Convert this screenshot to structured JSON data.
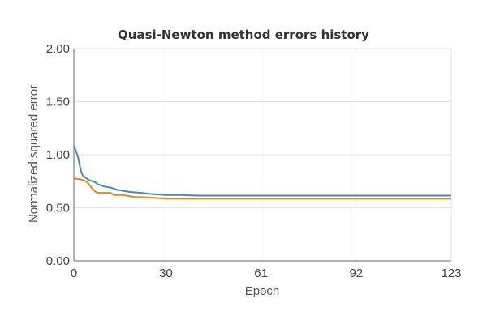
{
  "chart_data": {
    "type": "line",
    "title": "Quasi-Newton method errors history",
    "xlabel": "Epoch",
    "ylabel": "Normalized squared error",
    "xlim": [
      0,
      123
    ],
    "ylim": [
      0,
      2
    ],
    "x_ticks": [
      "0",
      "30",
      "61",
      "92",
      "123"
    ],
    "x_tick_values": [
      0,
      30,
      61,
      92,
      123
    ],
    "y_ticks": [
      "0.00",
      "0.50",
      "1.00",
      "1.50",
      "2.00"
    ],
    "y_tick_values": [
      0,
      0.5,
      1.0,
      1.5,
      2.0
    ],
    "grid": true,
    "series": [
      {
        "color": "#3a8ec2",
        "x": [
          0,
          0.5,
          1,
          1.5,
          2,
          2.5,
          3,
          4,
          5,
          6,
          7,
          8,
          10,
          12,
          14,
          16,
          18,
          20,
          22,
          25,
          28,
          30,
          35,
          40,
          50,
          60,
          80,
          100,
          123
        ],
        "y": [
          1.08,
          1.05,
          1.01,
          0.96,
          0.89,
          0.83,
          0.8,
          0.78,
          0.76,
          0.75,
          0.74,
          0.72,
          0.7,
          0.69,
          0.67,
          0.66,
          0.65,
          0.645,
          0.64,
          0.63,
          0.625,
          0.62,
          0.62,
          0.615,
          0.615,
          0.615,
          0.615,
          0.615,
          0.615
        ]
      },
      {
        "color": "#e08c17",
        "x": [
          0,
          1,
          2,
          3,
          4,
          5,
          6,
          7,
          8,
          10,
          12,
          13,
          14,
          16,
          18,
          20,
          22,
          25,
          28,
          30,
          35,
          40,
          60,
          80,
          100,
          123
        ],
        "y": [
          0.78,
          0.77,
          0.77,
          0.76,
          0.75,
          0.72,
          0.68,
          0.65,
          0.64,
          0.64,
          0.64,
          0.62,
          0.62,
          0.62,
          0.61,
          0.6,
          0.6,
          0.595,
          0.59,
          0.585,
          0.585,
          0.585,
          0.585,
          0.585,
          0.585,
          0.585
        ]
      }
    ]
  }
}
